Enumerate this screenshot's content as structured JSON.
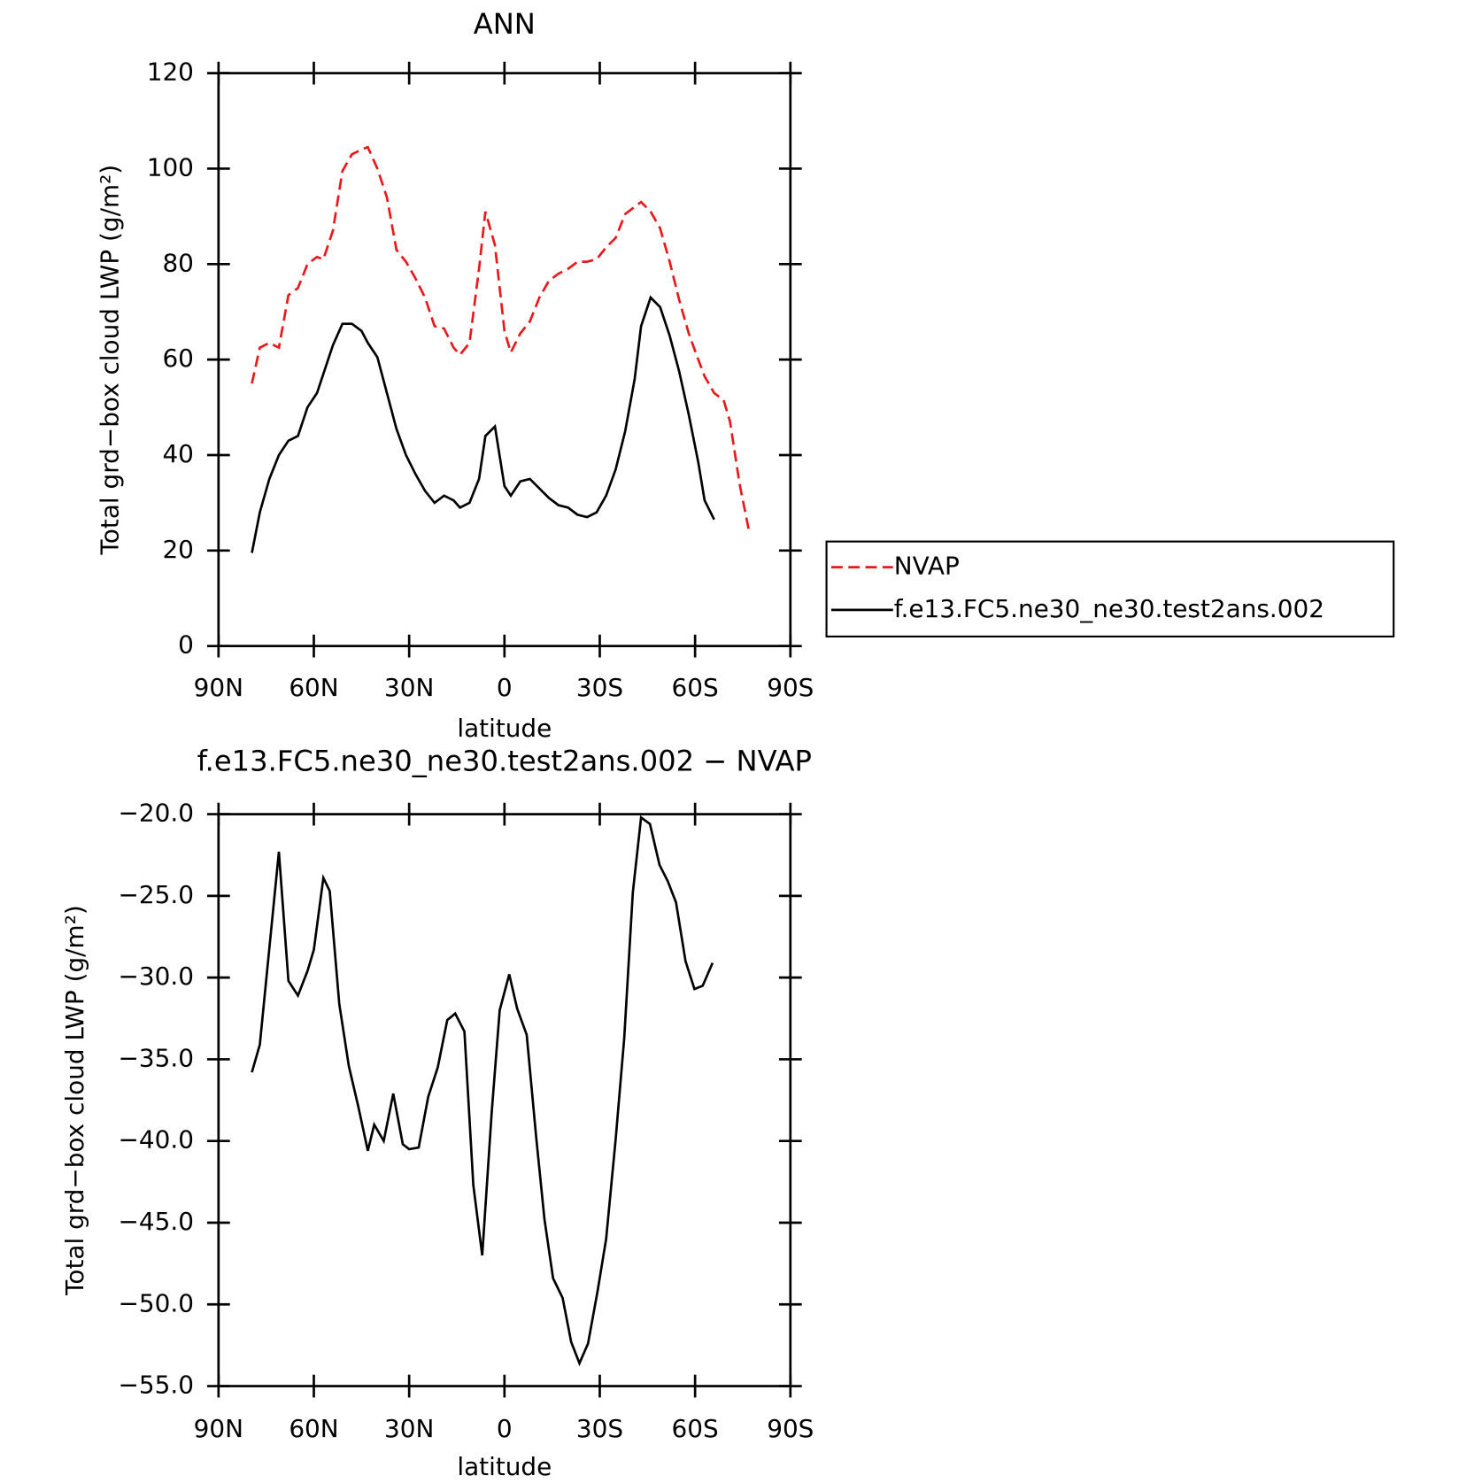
{
  "chart_data": [
    {
      "type": "line",
      "title": "ANN",
      "xlabel": "latitude",
      "ylabel": "Total grd−box cloud LWP (g/m²)",
      "xlim": [
        90,
        -90
      ],
      "xticks": [
        {
          "value": 90,
          "label": "90N"
        },
        {
          "value": 60,
          "label": "60N"
        },
        {
          "value": 30,
          "label": "30N"
        },
        0,
        {
          "value": -30,
          "label": "30S"
        },
        {
          "value": -60,
          "label": "60S"
        },
        {
          "value": -90,
          "label": "90S"
        }
      ],
      "ylim": [
        0,
        120
      ],
      "yticks": [
        0,
        20,
        40,
        60,
        80,
        100,
        120
      ],
      "legend": "right",
      "series": [
        {
          "name": "NVAP",
          "color": "#e8191b",
          "dash": true,
          "x": [
            79.5,
            77,
            74,
            71,
            68,
            65,
            62,
            59,
            57,
            54,
            51,
            48,
            45,
            43,
            40,
            37,
            34,
            31,
            28,
            25,
            22,
            19,
            16,
            14,
            11,
            8,
            6,
            3,
            0,
            -2,
            -5,
            -8,
            -11,
            -14,
            -17,
            -20,
            -23,
            -26,
            -29,
            -32,
            -35,
            -38,
            -41,
            -43,
            -46,
            -49,
            -52,
            -55,
            -58,
            -61,
            -63,
            -66,
            -69,
            -71,
            -74,
            -77
          ],
          "values": [
            55,
            62.5,
            63.5,
            62.5,
            73.5,
            75,
            80,
            81.5,
            81,
            87,
            99.5,
            103,
            104,
            104.5,
            100,
            94,
            83,
            80.5,
            77,
            73,
            67,
            66.5,
            62.5,
            61,
            63.5,
            79,
            91,
            84,
            66,
            61.5,
            65.5,
            68,
            73,
            76.5,
            78,
            79,
            80.5,
            80.5,
            81,
            83.5,
            85.5,
            90.5,
            92,
            93,
            91,
            87.5,
            80.5,
            72.5,
            65.5,
            60,
            56.5,
            53,
            51.5,
            47,
            34,
            24
          ]
        },
        {
          "name": "f.e13.FC5.ne30_ne30.test2ans.002",
          "color": "#000000",
          "dash": false,
          "x": [
            79.5,
            77,
            74,
            71,
            68,
            65,
            62,
            59,
            57,
            54,
            51,
            48,
            45,
            43,
            40,
            37,
            34,
            31,
            28,
            25,
            22,
            19,
            16,
            14,
            11,
            8,
            6,
            3,
            0,
            -2,
            -5,
            -8,
            -11,
            -14,
            -17,
            -20,
            -23,
            -26,
            -29,
            -32,
            -35,
            -38,
            -41,
            -43,
            -46,
            -49,
            -52,
            -55,
            -58,
            -61,
            -63,
            -66
          ],
          "values": [
            19.5,
            28,
            35,
            40,
            43,
            44,
            50,
            53,
            57,
            63,
            67.5,
            67.5,
            66,
            63.5,
            60.5,
            53,
            45.5,
            40,
            36,
            32.5,
            30,
            31.5,
            30.5,
            29,
            30,
            35,
            44,
            46,
            33.5,
            31.5,
            34.5,
            35,
            33,
            31,
            29.5,
            29,
            27.5,
            27,
            28,
            31.5,
            37,
            45,
            56,
            67,
            73,
            71,
            65,
            57.5,
            48.5,
            38.5,
            30.5,
            26.5
          ]
        }
      ]
    },
    {
      "type": "line",
      "title": "f.e13.FC5.ne30_ne30.test2ans.002 − NVAP",
      "xlabel": "latitude",
      "ylabel": "Total grd−box cloud LWP (g/m²)",
      "xlim": [
        90,
        -90
      ],
      "xticks": [
        {
          "value": 90,
          "label": "90N"
        },
        {
          "value": 60,
          "label": "60N"
        },
        {
          "value": 30,
          "label": "30N"
        },
        0,
        {
          "value": -30,
          "label": "30S"
        },
        {
          "value": -60,
          "label": "60S"
        },
        {
          "value": -90,
          "label": "90S"
        }
      ],
      "ylim": [
        -55,
        -20
      ],
      "yticks": [
        {
          "value": -55,
          "label": "−55.0"
        },
        {
          "value": -50,
          "label": "−50.0"
        },
        {
          "value": -45,
          "label": "−45.0"
        },
        {
          "value": -40,
          "label": "−40.0"
        },
        {
          "value": -35,
          "label": "−35.0"
        },
        {
          "value": -30,
          "label": "−30.0"
        },
        {
          "value": -25,
          "label": "−25.0"
        },
        {
          "value": -20,
          "label": "−20.0"
        }
      ],
      "series": [
        {
          "color": "#000000",
          "dash": false,
          "x": [
            79.5,
            77,
            71,
            68,
            65,
            62,
            60,
            57,
            55,
            52,
            49,
            46,
            43,
            41,
            38,
            35,
            32,
            30,
            27,
            24,
            21,
            18,
            15.5,
            12.6,
            9.8,
            7,
            4,
            1.5,
            -1.5,
            -4,
            -7,
            -10,
            -12.6,
            -15.3,
            -18.3,
            -21,
            -23.6,
            -26.3,
            -29.3,
            -32,
            -35,
            -37.7,
            -40.4,
            -43,
            -45.8,
            -48.8,
            -51.4,
            -54,
            -57,
            -59.8,
            -62.4,
            -65.5
          ],
          "values": [
            -35.8,
            -34.1,
            -22.3,
            -30.2,
            -31.1,
            -29.6,
            -28.3,
            -23.9,
            -24.7,
            -31.6,
            -35.4,
            -37.9,
            -40.6,
            -39,
            -40,
            -37.1,
            -40.2,
            -40.5,
            -40.4,
            -37.3,
            -35.5,
            -32.6,
            -32.2,
            -33.3,
            -42.7,
            -47,
            -38.2,
            -32,
            -29.8,
            -31.9,
            -33.5,
            -39.8,
            -44.8,
            -48.4,
            -49.6,
            -52.3,
            -53.6,
            -52.4,
            -49.2,
            -46,
            -39.9,
            -33.7,
            -24.8,
            -20.2,
            -20.6,
            -23.1,
            -24.1,
            -25.4,
            -29,
            -30.7,
            -30.5,
            -29.1
          ]
        }
      ]
    }
  ]
}
